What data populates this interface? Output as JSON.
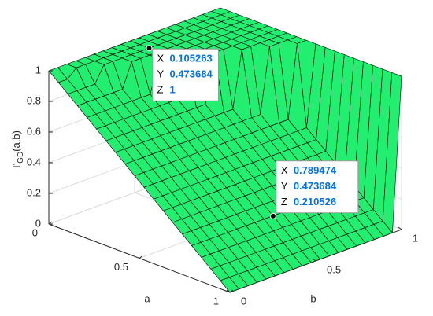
{
  "chart_data": {
    "type": "surface",
    "x_label": "a",
    "y_label": "b",
    "zlabel": {
      "text": "I'",
      "sub": "GD",
      "suffix": "(a,b)"
    },
    "color": "#22ee70",
    "edge_color": "#000000",
    "grid": true,
    "xlim": [
      0,
      1
    ],
    "ylim": [
      0,
      1
    ],
    "zlim": [
      0,
      1
    ],
    "xticks": [
      0,
      0.5,
      1
    ],
    "yticks": [
      0,
      0.5,
      1
    ],
    "zticks": [
      0,
      0.2,
      0.4,
      0.6,
      0.8,
      1
    ],
    "x": [
      0,
      0.053,
      0.105,
      0.158,
      0.211,
      0.263,
      0.316,
      0.368,
      0.421,
      0.474,
      0.526,
      0.579,
      0.632,
      0.684,
      0.737,
      0.789,
      0.842,
      0.895,
      0.947,
      1
    ],
    "y": [
      0,
      0.053,
      0.105,
      0.158,
      0.211,
      0.263,
      0.316,
      0.368,
      0.421,
      0.474,
      0.526,
      0.579,
      0.632,
      0.684,
      0.737,
      0.789,
      0.842,
      0.895,
      0.947,
      1
    ],
    "z": [
      [
        1,
        0.947,
        0.895,
        0.842,
        0.789,
        0.737,
        0.684,
        0.632,
        0.579,
        0.526,
        0.474,
        0.421,
        0.368,
        0.316,
        0.263,
        0.211,
        0.158,
        0.105,
        0.053,
        0
      ],
      [
        1,
        0.947,
        0.895,
        0.842,
        0.789,
        0.737,
        0.684,
        0.632,
        0.579,
        0.526,
        0.474,
        0.421,
        0.368,
        0.316,
        0.263,
        0.211,
        0.158,
        0.105,
        0.053,
        0
      ],
      [
        1,
        1,
        0.895,
        0.842,
        0.789,
        0.737,
        0.684,
        0.632,
        0.579,
        0.526,
        0.474,
        0.421,
        0.368,
        0.316,
        0.263,
        0.211,
        0.158,
        0.105,
        0.053,
        0
      ],
      [
        1,
        1,
        0.895,
        0.842,
        0.789,
        0.737,
        0.684,
        0.632,
        0.579,
        0.526,
        0.474,
        0.421,
        0.368,
        0.316,
        0.263,
        0.211,
        0.158,
        0.105,
        0.053,
        0
      ],
      [
        1,
        1,
        1,
        0.842,
        0.789,
        0.737,
        0.684,
        0.632,
        0.579,
        0.526,
        0.474,
        0.421,
        0.368,
        0.316,
        0.263,
        0.211,
        0.158,
        0.105,
        0.053,
        0
      ],
      [
        1,
        1,
        1,
        0.842,
        0.789,
        0.737,
        0.684,
        0.632,
        0.579,
        0.526,
        0.474,
        0.421,
        0.368,
        0.316,
        0.263,
        0.211,
        0.158,
        0.105,
        0.053,
        0
      ],
      [
        1,
        1,
        1,
        1,
        0.789,
        0.737,
        0.684,
        0.632,
        0.579,
        0.526,
        0.474,
        0.421,
        0.368,
        0.316,
        0.263,
        0.211,
        0.158,
        0.105,
        0.053,
        0
      ],
      [
        1,
        1,
        1,
        1,
        0.789,
        0.737,
        0.684,
        0.632,
        0.579,
        0.526,
        0.474,
        0.421,
        0.368,
        0.316,
        0.263,
        0.211,
        0.158,
        0.105,
        0.053,
        0
      ],
      [
        1,
        1,
        1,
        1,
        1,
        0.737,
        0.684,
        0.632,
        0.579,
        0.526,
        0.474,
        0.421,
        0.368,
        0.316,
        0.263,
        0.211,
        0.158,
        0.105,
        0.053,
        0
      ],
      [
        1,
        1,
        1,
        1,
        1,
        0.737,
        0.684,
        0.632,
        0.579,
        0.526,
        0.474,
        0.421,
        0.368,
        0.316,
        0.263,
        0.211,
        0.158,
        0.105,
        0.053,
        0
      ],
      [
        1,
        1,
        1,
        1,
        1,
        1,
        0.684,
        0.632,
        0.579,
        0.526,
        0.474,
        0.421,
        0.368,
        0.316,
        0.263,
        0.211,
        0.158,
        0.105,
        0.053,
        0
      ],
      [
        1,
        1,
        1,
        1,
        1,
        1,
        0.684,
        0.632,
        0.579,
        0.526,
        0.474,
        0.421,
        0.368,
        0.316,
        0.263,
        0.211,
        0.158,
        0.105,
        0.053,
        0
      ],
      [
        1,
        1,
        1,
        1,
        1,
        1,
        1,
        0.632,
        0.579,
        0.526,
        0.474,
        0.421,
        0.368,
        0.316,
        0.263,
        0.211,
        0.158,
        0.105,
        0.053,
        0
      ],
      [
        1,
        1,
        1,
        1,
        1,
        1,
        1,
        0.632,
        0.579,
        0.526,
        0.474,
        0.421,
        0.368,
        0.316,
        0.263,
        0.211,
        0.158,
        0.105,
        0.053,
        0
      ],
      [
        1,
        1,
        1,
        1,
        1,
        1,
        1,
        1,
        0.579,
        0.526,
        0.474,
        0.421,
        0.368,
        0.316,
        0.263,
        0.211,
        0.158,
        0.105,
        0.053,
        0
      ],
      [
        1,
        1,
        1,
        1,
        1,
        1,
        1,
        1,
        0.579,
        0.526,
        0.474,
        0.421,
        0.368,
        0.316,
        0.263,
        0.211,
        0.158,
        0.105,
        0.053,
        0
      ],
      [
        1,
        1,
        1,
        1,
        1,
        1,
        1,
        1,
        1,
        0.526,
        0.474,
        0.421,
        0.368,
        0.316,
        0.263,
        0.211,
        0.158,
        0.105,
        0.053,
        0
      ],
      [
        1,
        1,
        1,
        1,
        1,
        1,
        1,
        1,
        1,
        0.526,
        0.474,
        0.421,
        0.368,
        0.316,
        0.263,
        0.211,
        0.158,
        0.105,
        0.053,
        0
      ],
      [
        1,
        1,
        1,
        1,
        1,
        1,
        1,
        1,
        1,
        1,
        0.474,
        0.421,
        0.368,
        0.316,
        0.263,
        0.211,
        0.158,
        0.105,
        0.053,
        0
      ],
      [
        1,
        1,
        1,
        1,
        1,
        1,
        1,
        1,
        1,
        1,
        1,
        1,
        1,
        1,
        1,
        1,
        1,
        1,
        1,
        1
      ]
    ],
    "datatip_labels": [
      "X",
      "Y",
      "Z"
    ],
    "datatips": [
      {
        "x": 0.105263,
        "y": 0.473684,
        "z": 1
      },
      {
        "x": 0.789474,
        "y": 0.473684,
        "z": 0.210526
      }
    ]
  }
}
